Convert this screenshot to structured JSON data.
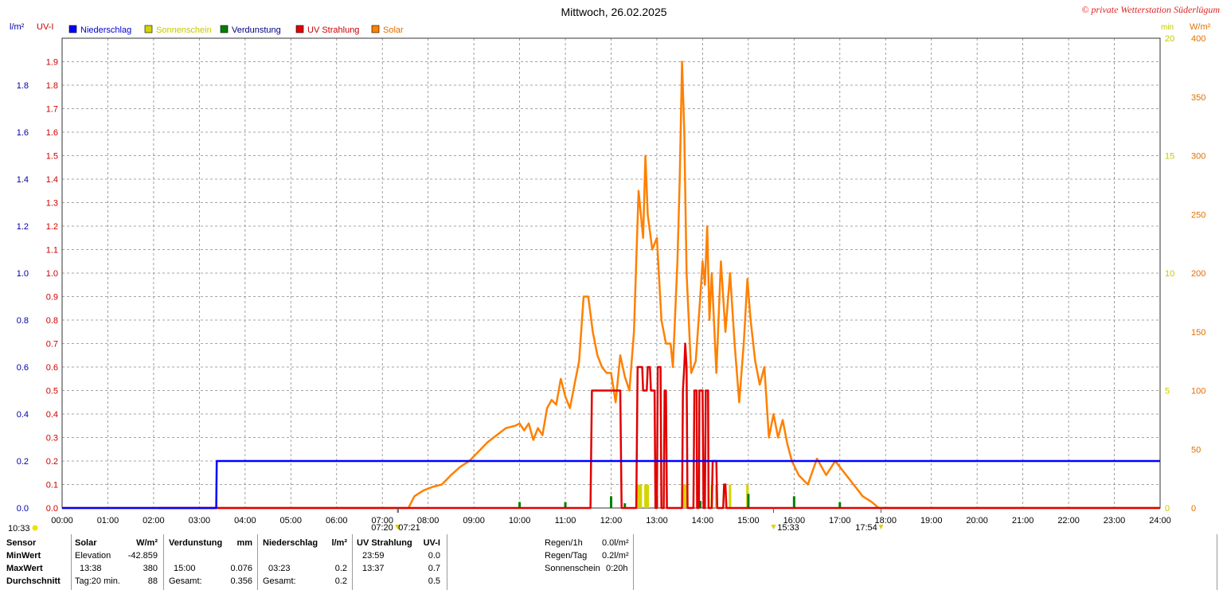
{
  "header": {
    "title": "Mittwoch, 26.02.2025",
    "copyright": "© private Wetterstation Süderlügum",
    "left_unit_1": "l/m²",
    "left_unit_2": "UV-I",
    "right_unit_1": "min",
    "right_unit_2": "W/m²"
  },
  "legend": [
    {
      "label": "Niederschlag",
      "color": "#0000ff",
      "text_color": "#0000cc"
    },
    {
      "label": "Sonnenschein",
      "color": "#d4d400",
      "text_color": "#c8c800"
    },
    {
      "label": "Verdunstung",
      "color": "#008000",
      "text_color": "#000080"
    },
    {
      "label": "UV Strahlung",
      "color": "#e00000",
      "text_color": "#cc0000"
    },
    {
      "label": "Solar",
      "color": "#ff8000",
      "text_color": "#e07000"
    }
  ],
  "chart_data": {
    "type": "line",
    "x_unit": "hour of day",
    "xlim": [
      0,
      24
    ],
    "x_ticks": [
      "00:00",
      "01:00",
      "02:00",
      "03:00",
      "04:00",
      "05:00",
      "06:00",
      "07:00",
      "08:00",
      "09:00",
      "10:00",
      "11:00",
      "12:00",
      "13:00",
      "14:00",
      "15:00",
      "16:00",
      "17:00",
      "18:00",
      "19:00",
      "20:00",
      "21:00",
      "22:00",
      "23:00",
      "24:00"
    ],
    "grid": true,
    "axes": {
      "precip": {
        "range": [
          0,
          2.0
        ],
        "ticks": [
          "0.0",
          "0.2",
          "0.4",
          "0.6",
          "0.8",
          "1.0",
          "1.2",
          "1.4",
          "1.6",
          "1.8"
        ],
        "color": "#0000aa"
      },
      "uv": {
        "range": [
          0,
          2.0
        ],
        "ticks": [
          "0.0",
          "0.1",
          "0.2",
          "0.3",
          "0.4",
          "0.5",
          "0.6",
          "0.7",
          "0.8",
          "0.9",
          "1.0",
          "1.1",
          "1.2",
          "1.3",
          "1.4",
          "1.5",
          "1.6",
          "1.7",
          "1.8",
          "1.9"
        ],
        "color": "#cc0000"
      },
      "sun": {
        "range": [
          0,
          20
        ],
        "ticks": [
          "0",
          "5",
          "10",
          "15",
          "20"
        ],
        "color": "#c8c800"
      },
      "solar": {
        "range": [
          0,
          400
        ],
        "ticks": [
          "0",
          "50",
          "100",
          "150",
          "200",
          "250",
          "300",
          "350",
          "400"
        ],
        "color": "#e07000"
      }
    },
    "series": [
      {
        "name": "Niederschlag",
        "axis": "precip",
        "color": "#0000ff",
        "points": [
          [
            0,
            0
          ],
          [
            3.37,
            0
          ],
          [
            3.38,
            0.2
          ],
          [
            24,
            0.2
          ]
        ]
      },
      {
        "name": "UV Strahlung",
        "axis": "uv",
        "color": "#e00000",
        "points": [
          [
            2.1,
            0
          ],
          [
            11.55,
            0
          ],
          [
            11.58,
            0.5
          ],
          [
            12.2,
            0.5
          ],
          [
            12.23,
            0
          ],
          [
            12.55,
            0
          ],
          [
            12.58,
            0.6
          ],
          [
            12.68,
            0.6
          ],
          [
            12.7,
            0.5
          ],
          [
            12.78,
            0.5
          ],
          [
            12.8,
            0.6
          ],
          [
            12.85,
            0.6
          ],
          [
            12.87,
            0.5
          ],
          [
            12.95,
            0.5
          ],
          [
            12.97,
            0
          ],
          [
            13.0,
            0
          ],
          [
            13.02,
            0.6
          ],
          [
            13.08,
            0.6
          ],
          [
            13.1,
            0
          ],
          [
            13.15,
            0
          ],
          [
            13.17,
            0.5
          ],
          [
            13.2,
            0.5
          ],
          [
            13.22,
            0
          ],
          [
            13.55,
            0
          ],
          [
            13.57,
            0.5
          ],
          [
            13.6,
            0.6
          ],
          [
            13.62,
            0.7
          ],
          [
            13.65,
            0.6
          ],
          [
            13.67,
            0
          ],
          [
            13.8,
            0
          ],
          [
            13.82,
            0.5
          ],
          [
            13.87,
            0.5
          ],
          [
            13.88,
            0
          ],
          [
            13.92,
            0
          ],
          [
            13.93,
            0.5
          ],
          [
            14.0,
            0.5
          ],
          [
            14.02,
            0
          ],
          [
            14.05,
            0
          ],
          [
            14.07,
            0.5
          ],
          [
            14.12,
            0.5
          ],
          [
            14.13,
            0
          ],
          [
            14.2,
            0
          ],
          [
            14.22,
            0.2
          ],
          [
            14.3,
            0.2
          ],
          [
            14.32,
            0
          ],
          [
            14.45,
            0
          ],
          [
            14.47,
            0.1
          ],
          [
            14.5,
            0.1
          ],
          [
            14.52,
            0
          ],
          [
            24,
            0
          ]
        ]
      },
      {
        "name": "Solar",
        "axis": "solar",
        "color": "#ff8000",
        "points": [
          [
            0,
            0
          ],
          [
            7.57,
            0
          ],
          [
            7.7,
            10
          ],
          [
            7.9,
            15
          ],
          [
            8.1,
            18
          ],
          [
            8.3,
            20
          ],
          [
            8.5,
            28
          ],
          [
            8.7,
            35
          ],
          [
            8.9,
            40
          ],
          [
            9.1,
            48
          ],
          [
            9.3,
            56
          ],
          [
            9.5,
            62
          ],
          [
            9.7,
            68
          ],
          [
            9.9,
            70
          ],
          [
            10.0,
            72
          ],
          [
            10.1,
            66
          ],
          [
            10.2,
            72
          ],
          [
            10.3,
            58
          ],
          [
            10.4,
            68
          ],
          [
            10.5,
            62
          ],
          [
            10.6,
            85
          ],
          [
            10.7,
            92
          ],
          [
            10.8,
            88
          ],
          [
            10.9,
            110
          ],
          [
            11.0,
            95
          ],
          [
            11.1,
            85
          ],
          [
            11.2,
            105
          ],
          [
            11.3,
            125
          ],
          [
            11.4,
            180
          ],
          [
            11.5,
            180
          ],
          [
            11.6,
            150
          ],
          [
            11.7,
            130
          ],
          [
            11.8,
            120
          ],
          [
            11.9,
            115
          ],
          [
            12.0,
            115
          ],
          [
            12.1,
            90
          ],
          [
            12.2,
            130
          ],
          [
            12.3,
            112
          ],
          [
            12.4,
            100
          ],
          [
            12.5,
            150
          ],
          [
            12.55,
            210
          ],
          [
            12.6,
            270
          ],
          [
            12.7,
            230
          ],
          [
            12.75,
            300
          ],
          [
            12.8,
            250
          ],
          [
            12.9,
            220
          ],
          [
            13.0,
            230
          ],
          [
            13.1,
            160
          ],
          [
            13.2,
            140
          ],
          [
            13.3,
            140
          ],
          [
            13.35,
            120
          ],
          [
            13.45,
            210
          ],
          [
            13.5,
            280
          ],
          [
            13.55,
            380
          ],
          [
            13.6,
            320
          ],
          [
            13.65,
            200
          ],
          [
            13.75,
            115
          ],
          [
            13.85,
            125
          ],
          [
            13.95,
            180
          ],
          [
            14.0,
            210
          ],
          [
            14.05,
            190
          ],
          [
            14.1,
            240
          ],
          [
            14.15,
            160
          ],
          [
            14.2,
            200
          ],
          [
            14.3,
            115
          ],
          [
            14.4,
            210
          ],
          [
            14.5,
            150
          ],
          [
            14.6,
            200
          ],
          [
            14.7,
            140
          ],
          [
            14.8,
            90
          ],
          [
            14.9,
            140
          ],
          [
            14.98,
            195
          ],
          [
            15.05,
            160
          ],
          [
            15.15,
            125
          ],
          [
            15.25,
            105
          ],
          [
            15.35,
            120
          ],
          [
            15.45,
            60
          ],
          [
            15.55,
            80
          ],
          [
            15.65,
            60
          ],
          [
            15.75,
            75
          ],
          [
            15.85,
            55
          ],
          [
            15.95,
            40
          ],
          [
            16.1,
            28
          ],
          [
            16.3,
            20
          ],
          [
            16.5,
            42
          ],
          [
            16.7,
            28
          ],
          [
            16.9,
            40
          ],
          [
            17.1,
            30
          ],
          [
            17.3,
            20
          ],
          [
            17.5,
            10
          ],
          [
            17.7,
            5
          ],
          [
            17.85,
            0
          ],
          [
            24,
            0
          ]
        ]
      },
      {
        "name": "Sonnenschein",
        "axis": "sun",
        "color": "#d4d400",
        "bars": [
          [
            12.6,
            1
          ],
          [
            12.65,
            1
          ],
          [
            12.75,
            1
          ],
          [
            12.8,
            1
          ],
          [
            13.6,
            1
          ],
          [
            13.65,
            1
          ],
          [
            13.9,
            1
          ],
          [
            14.2,
            1
          ],
          [
            14.3,
            1
          ],
          [
            14.6,
            1
          ],
          [
            14.98,
            1
          ]
        ]
      },
      {
        "name": "Verdunstung",
        "axis": "sun",
        "color": "#008000",
        "bars": [
          [
            10.0,
            0.25
          ],
          [
            11.0,
            0.25
          ],
          [
            12.0,
            0.5
          ],
          [
            12.3,
            0.2
          ],
          [
            13.0,
            0.5
          ],
          [
            13.95,
            0.3
          ],
          [
            15.0,
            0.6
          ],
          [
            16.0,
            0.5
          ],
          [
            17.0,
            0.25
          ]
        ]
      }
    ],
    "annotations": [
      {
        "x": 7.33,
        "label": "07:20",
        "marker": "sunrise"
      },
      {
        "x": 7.35,
        "label": "07:21",
        "marker": "uv-start"
      },
      {
        "x": 15.55,
        "label": "15:33",
        "marker": "sun-min"
      },
      {
        "x": 17.9,
        "label": "17:54",
        "marker": "sunset"
      }
    ]
  },
  "now_label": "10:33",
  "summary": {
    "row_labels": [
      "Sensor",
      "MinWert",
      "MaxWert",
      "Durchschnitt"
    ],
    "solar": {
      "header": "Solar",
      "unit": "W/m²",
      "min_label": "Elevation",
      "min_value": "-42.859",
      "max_time": "13:38",
      "max_value": "380",
      "avg_label": "Tag:20 min.",
      "avg_value": "88"
    },
    "evap": {
      "header": "Verdunstung",
      "unit": "mm",
      "max_time": "15:00",
      "max_value": "0.076",
      "total_label": "Gesamt:",
      "total_value": "0.356"
    },
    "precip": {
      "header": "Niederschlag",
      "unit": "l/m²",
      "max_time": "03:23",
      "max_value": "0.2",
      "total_label": "Gesamt:",
      "total_value": "0.2"
    },
    "uv": {
      "header": "UV Strahlung",
      "unit": "UV-I",
      "min_time": "23:59",
      "min_value": "0.0",
      "max_time": "13:37",
      "max_value": "0.7",
      "avg_value": "0.5"
    },
    "totals": [
      {
        "label": "Regen/1h",
        "value": "0.0l/m²"
      },
      {
        "label": "Regen/Tag",
        "value": "0.2l/m²"
      },
      {
        "label": "Sonnenschein",
        "value": "0:20h"
      }
    ]
  }
}
